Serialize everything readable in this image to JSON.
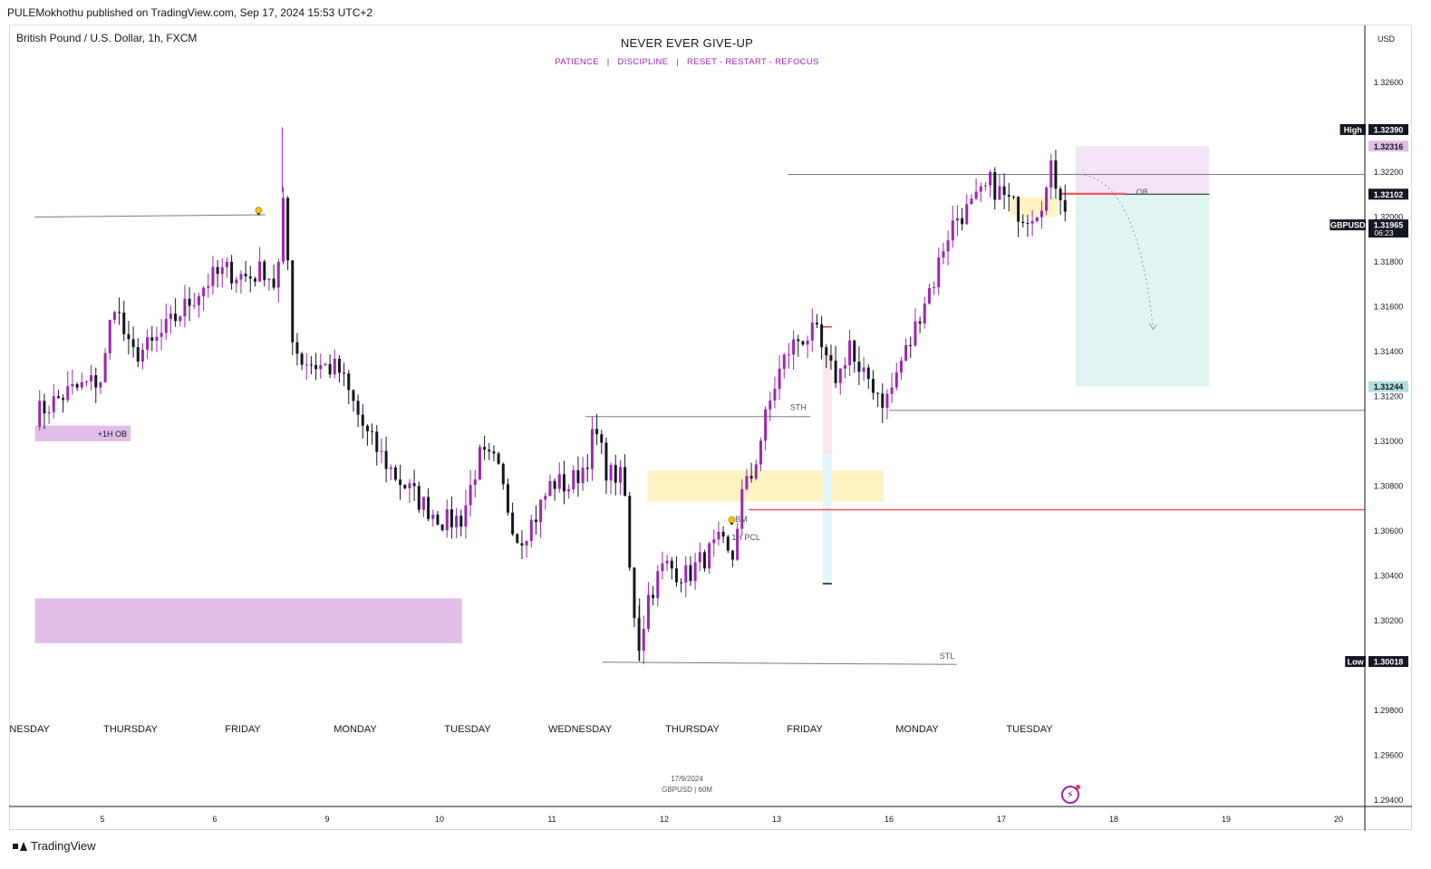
{
  "publisher": "PULEMokhothu published on TradingView.com, Sep 17, 2024 15:53 UTC+2",
  "symbol_line": "British Pound / U.S. Dollar, 1h, FXCM",
  "footer_brand": "TradingView",
  "watermark": {
    "date": "17/9/2024",
    "symbol": "GBPUSD | 60M"
  },
  "colors": {
    "up": "#9c27b0",
    "down": "#131722",
    "accent": "#9c27b0",
    "stop_line": "#f7525f"
  },
  "chart_data": {
    "type": "candlestick",
    "title": "NEVER EVER GIVE-UP",
    "subtitle": [
      "PATIENCE",
      "|",
      "DISCIPLINE",
      "|",
      "RESET - RESTART - REFOCUS"
    ],
    "currency": "USD",
    "ylim": [
      1.2925,
      1.3285
    ],
    "y_ticks": [
      "1.32600",
      "1.32200",
      "1.32000",
      "1.31800",
      "1.31600",
      "1.31400",
      "1.31200",
      "1.31000",
      "1.30800",
      "1.30600",
      "1.30400",
      "1.30200",
      "1.29800",
      "1.29600",
      "1.29400"
    ],
    "x_day_index_range": [
      -0.6,
      11.5
    ],
    "x_ticks": [
      {
        "label": "5",
        "day": 0
      },
      {
        "label": "6",
        "day": 1
      },
      {
        "label": "9",
        "day": 2
      },
      {
        "label": "10",
        "day": 3
      },
      {
        "label": "11",
        "day": 4
      },
      {
        "label": "12",
        "day": 5
      },
      {
        "label": "13",
        "day": 6
      },
      {
        "label": "16",
        "day": 7
      },
      {
        "label": "17",
        "day": 8
      },
      {
        "label": "18",
        "day": 9
      },
      {
        "label": "19",
        "day": 10
      },
      {
        "label": "20",
        "day": 11
      }
    ],
    "weekday_labels": [
      {
        "label": "DNESDAY",
        "day": -0.68
      },
      {
        "label": "THURSDAY",
        "day": 0.25
      },
      {
        "label": "FRIDAY",
        "day": 1.25
      },
      {
        "label": "MONDAY",
        "day": 2.25
      },
      {
        "label": "TUESDAY",
        "day": 3.25
      },
      {
        "label": "WEDNESDAY",
        "day": 4.25
      },
      {
        "label": "THURSDAY",
        "day": 5.25
      },
      {
        "label": "FRIDAY",
        "day": 6.25
      },
      {
        "label": "MONDAY",
        "day": 7.25
      },
      {
        "label": "TUESDAY",
        "day": 8.25
      }
    ],
    "price_labels": [
      {
        "tag": "High",
        "value": "1.32390",
        "price": 1.3239,
        "style": "dark"
      },
      {
        "tag": "",
        "value": "1.32316",
        "price": 1.32316,
        "style": "pink"
      },
      {
        "tag": "",
        "value": "1.32102",
        "price": 1.32102,
        "style": "dark"
      },
      {
        "tag": "GBPUSD",
        "value": "1.31965",
        "sub": "06:23",
        "price": 1.31965,
        "style": "dark"
      },
      {
        "tag": "",
        "value": "1.31244",
        "price": 1.31244,
        "style": "teal"
      },
      {
        "tag": "Low",
        "value": "1.30018",
        "price": 1.30018,
        "style": "dark"
      }
    ],
    "anchors": [
      {
        "day": -0.6,
        "price": 1.3112
      },
      {
        "day": -0.3,
        "price": 1.3122
      },
      {
        "day": 0.0,
        "price": 1.3128
      },
      {
        "day": 0.1,
        "price": 1.3164
      },
      {
        "day": 0.25,
        "price": 1.3138
      },
      {
        "day": 0.45,
        "price": 1.3143
      },
      {
        "day": 0.7,
        "price": 1.3158
      },
      {
        "day": 0.95,
        "price": 1.3172
      },
      {
        "day": 1.1,
        "price": 1.3176
      },
      {
        "day": 1.3,
        "price": 1.3173
      },
      {
        "day": 1.45,
        "price": 1.3177
      },
      {
        "day": 1.55,
        "price": 1.3168
      },
      {
        "day": 1.62,
        "price": 1.3211
      },
      {
        "day": 1.68,
        "price": 1.315
      },
      {
        "day": 1.75,
        "price": 1.3137
      },
      {
        "day": 1.9,
        "price": 1.3134
      },
      {
        "day": 2.1,
        "price": 1.3132
      },
      {
        "day": 2.35,
        "price": 1.3103
      },
      {
        "day": 2.6,
        "price": 1.3085
      },
      {
        "day": 2.85,
        "price": 1.3072
      },
      {
        "day": 3.05,
        "price": 1.3064
      },
      {
        "day": 3.2,
        "price": 1.3066
      },
      {
        "day": 3.35,
        "price": 1.3093
      },
      {
        "day": 3.5,
        "price": 1.309
      },
      {
        "day": 3.6,
        "price": 1.3072
      },
      {
        "day": 3.7,
        "price": 1.3056
      },
      {
        "day": 3.85,
        "price": 1.3066
      },
      {
        "day": 4.0,
        "price": 1.3082
      },
      {
        "day": 4.15,
        "price": 1.308
      },
      {
        "day": 4.3,
        "price": 1.309
      },
      {
        "day": 4.38,
        "price": 1.3105
      },
      {
        "day": 4.5,
        "price": 1.3085
      },
      {
        "day": 4.6,
        "price": 1.3085
      },
      {
        "day": 4.65,
        "price": 1.3075
      },
      {
        "day": 4.7,
        "price": 1.3035
      },
      {
        "day": 4.78,
        "price": 1.3008
      },
      {
        "day": 4.85,
        "price": 1.303
      },
      {
        "day": 5.0,
        "price": 1.3045
      },
      {
        "day": 5.2,
        "price": 1.304
      },
      {
        "day": 5.35,
        "price": 1.3048
      },
      {
        "day": 5.5,
        "price": 1.3055
      },
      {
        "day": 5.6,
        "price": 1.3045
      },
      {
        "day": 5.68,
        "price": 1.3075
      },
      {
        "day": 5.78,
        "price": 1.3085
      },
      {
        "day": 5.9,
        "price": 1.311
      },
      {
        "day": 6.0,
        "price": 1.3128
      },
      {
        "day": 6.1,
        "price": 1.314
      },
      {
        "day": 6.2,
        "price": 1.3146
      },
      {
        "day": 6.35,
        "price": 1.3148
      },
      {
        "day": 6.45,
        "price": 1.3133
      },
      {
        "day": 6.55,
        "price": 1.3128
      },
      {
        "day": 6.65,
        "price": 1.3145
      },
      {
        "day": 6.72,
        "price": 1.3128
      },
      {
        "day": 6.82,
        "price": 1.3128
      },
      {
        "day": 6.95,
        "price": 1.3118
      },
      {
        "day": 7.0,
        "price": 1.312
      },
      {
        "day": 7.1,
        "price": 1.3135
      },
      {
        "day": 7.2,
        "price": 1.3145
      },
      {
        "day": 7.3,
        "price": 1.3162
      },
      {
        "day": 7.4,
        "price": 1.3172
      },
      {
        "day": 7.5,
        "price": 1.319
      },
      {
        "day": 7.6,
        "price": 1.32
      },
      {
        "day": 7.7,
        "price": 1.3203
      },
      {
        "day": 7.8,
        "price": 1.3208
      },
      {
        "day": 7.9,
        "price": 1.3215
      },
      {
        "day": 8.0,
        "price": 1.321
      },
      {
        "day": 8.1,
        "price": 1.3205
      },
      {
        "day": 8.2,
        "price": 1.3201
      },
      {
        "day": 8.3,
        "price": 1.3203
      },
      {
        "day": 8.4,
        "price": 1.3212
      },
      {
        "day": 8.45,
        "price": 1.3222
      },
      {
        "day": 8.5,
        "price": 1.3213
      },
      {
        "day": 8.55,
        "price": 1.321
      },
      {
        "day": 8.6,
        "price": 1.3197
      }
    ],
    "zones": [
      {
        "name": "1h-ob-zone",
        "label": "+1H OB",
        "day0": -0.6,
        "day1": 0.25,
        "p0": 1.31,
        "p1": 1.3107,
        "fill": "#e1bee7"
      },
      {
        "name": "lower-supply-zone",
        "day0": -0.6,
        "day1": 3.2,
        "p0": 1.301,
        "p1": 1.303,
        "fill": "#e1bee7"
      },
      {
        "name": "fvg-zone",
        "day0": 4.85,
        "day1": 6.95,
        "p0": 1.3073,
        "p1": 1.3087,
        "fill": "#fff3c4"
      },
      {
        "name": "small-fvg-zone",
        "day0": 8.08,
        "day1": 8.5,
        "p0": 1.32,
        "p1": 1.3209,
        "fill": "#fff3c4"
      },
      {
        "name": "position-stop-zone",
        "day0": 8.66,
        "day1": 9.85,
        "p0": 1.32102,
        "p1": 1.32316,
        "fill": "#f3e5f5"
      },
      {
        "name": "position-target-zone",
        "day0": 8.66,
        "day1": 9.85,
        "p0": 1.31244,
        "p1": 1.32102,
        "fill": "#e0f5f1"
      }
    ],
    "levels": [
      {
        "name": "early-high-line",
        "day0": -0.6,
        "day1": 1.45,
        "p0": 1.32,
        "p1": 1.3201,
        "color": "#787b86",
        "width": 1
      },
      {
        "name": "right-high-line",
        "day0": 6.1,
        "day1": 11.5,
        "p0": 1.3219,
        "p1": 1.3219,
        "color": "#787b86",
        "width": 1
      },
      {
        "name": "ob-line",
        "day0": 8.52,
        "day1": 9.85,
        "p0": 1.32102,
        "p1": 1.32102,
        "color": "#131722",
        "width": 1
      },
      {
        "name": "entry-line",
        "day0": 8.52,
        "day1": 9.1,
        "p0": 1.32104,
        "p1": 1.32104,
        "color": "#f7525f",
        "width": 2
      },
      {
        "name": "sth-line",
        "day0": 4.3,
        "day1": 6.3,
        "p0": 1.3111,
        "p1": 1.3111,
        "color": "#787b86",
        "width": 1
      },
      {
        "name": "monday-low-line",
        "day0": 7.0,
        "day1": 11.5,
        "p0": 1.31138,
        "p1": 1.31138,
        "color": "#787b86",
        "width": 1
      },
      {
        "name": "stop-level-line",
        "day0": 5.75,
        "day1": 11.5,
        "p0": 1.30695,
        "p1": 1.30695,
        "color": "#f7525f",
        "width": 1.5
      },
      {
        "name": "stl-line",
        "day0": 4.45,
        "day1": 7.6,
        "p0": 1.30015,
        "p1": 1.30005,
        "color": "#787b86",
        "width": 1
      }
    ],
    "annotations": [
      {
        "text": "STH",
        "day": 6.12,
        "price": 1.3114
      },
      {
        "text": "STL",
        "day": 7.45,
        "price": 1.3003
      },
      {
        "text": "OB",
        "day": 9.2,
        "price": 1.321
      },
      {
        "text": "1H PCL",
        "day": 5.6,
        "price": 1.3056
      },
      {
        "text": "BM",
        "day": 5.63,
        "price": 1.3064
      }
    ]
  }
}
